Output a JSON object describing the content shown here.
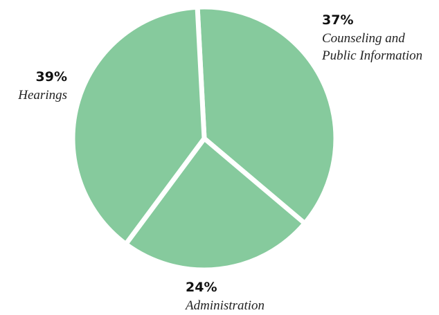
{
  "chart_data": {
    "type": "pie",
    "categories": [
      "Counseling and Public Information",
      "Administration",
      "Hearings"
    ],
    "values": [
      37,
      24,
      39
    ],
    "value_labels": [
      "37%",
      "24%",
      "39%"
    ],
    "color": "#86ca9d"
  }
}
